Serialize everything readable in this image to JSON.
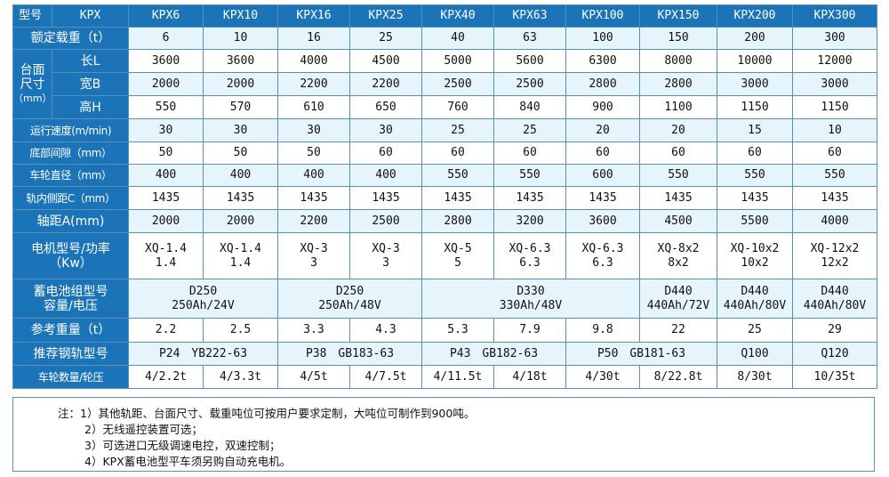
{
  "header": {
    "label": "型号",
    "series": "KPX",
    "models": [
      "KPX6",
      "KPX10",
      "KPX16",
      "KPX25",
      "KPX40",
      "KPX63",
      "KPX100",
      "KPX150",
      "KPX200",
      "KPX300"
    ]
  },
  "load": {
    "label": "额定载重（t）",
    "values": [
      "6",
      "10",
      "16",
      "25",
      "40",
      "63",
      "100",
      "150",
      "200",
      "300"
    ]
  },
  "table_size": {
    "label_line1": "台面",
    "label_line2": "尺寸",
    "label_line3": "（mm）",
    "length": {
      "label": "长L",
      "values": [
        "3600",
        "3600",
        "4000",
        "4500",
        "5000",
        "5600",
        "6300",
        "8000",
        "10000",
        "12000"
      ]
    },
    "width": {
      "label": "宽B",
      "values": [
        "2000",
        "2000",
        "2200",
        "2200",
        "2500",
        "2500",
        "2800",
        "2800",
        "3000",
        "3000"
      ]
    },
    "height": {
      "label": "高H",
      "values": [
        "550",
        "570",
        "610",
        "650",
        "760",
        "840",
        "900",
        "1100",
        "1150",
        "1150"
      ]
    }
  },
  "speed": {
    "label": "运行速度(m/min)",
    "values": [
      "30",
      "30",
      "30",
      "30",
      "25",
      "25",
      "20",
      "20",
      "15",
      "10"
    ]
  },
  "clearance": {
    "label": "底部间隙（mm）",
    "values": [
      "50",
      "50",
      "50",
      "60",
      "60",
      "60",
      "60",
      "60",
      "60",
      "60"
    ]
  },
  "wheel_dia": {
    "label": "车轮直径（mm）",
    "values": [
      "400",
      "400",
      "400",
      "400",
      "550",
      "550",
      "600",
      "550",
      "550",
      "550"
    ]
  },
  "gauge": {
    "label": "轨内侧距C（mm）",
    "values": [
      "1435",
      "1435",
      "1435",
      "1435",
      "1435",
      "1435",
      "1435",
      "1435",
      "1435",
      "1435"
    ]
  },
  "wheelbase": {
    "label": "轴距A(mm)",
    "values": [
      "2000",
      "2000",
      "2200",
      "2500",
      "2800",
      "3200",
      "3600",
      "4500",
      "5500",
      "4000"
    ]
  },
  "motor": {
    "label_line1": "电机型号/功率",
    "label_line2": "（Kw）",
    "models": [
      "XQ-1.4",
      "XQ-1.4",
      "XQ-3",
      "XQ-3",
      "XQ-5",
      "XQ-6.3",
      "XQ-6.3",
      "XQ-8x2",
      "XQ-10x2",
      "XQ-12x2"
    ],
    "powers": [
      "1.4",
      "1.4",
      "3",
      "3",
      "5",
      "6.3",
      "6.3",
      "8x2",
      "10x2",
      "12x2"
    ]
  },
  "battery": {
    "label_line1": "蓄电池组型号",
    "label_line2": "容量/电压",
    "groups": [
      {
        "model": "D250",
        "capacity": "250Ah/24V"
      },
      {
        "model": "D250",
        "capacity": "250Ah/48V"
      },
      {
        "model": "D330",
        "capacity": "330Ah/48V"
      },
      {
        "model": "D440",
        "capacity": "440Ah/72V"
      },
      {
        "model": "D440",
        "capacity": "440Ah/80V"
      },
      {
        "model": "D440",
        "capacity": "440Ah/80V"
      }
    ]
  },
  "weight": {
    "label": "参考重量（t）",
    "values": [
      "2.2",
      "2.5",
      "3.3",
      "4.3",
      "5.3",
      "7.9",
      "9.8",
      "22",
      "25",
      "29"
    ]
  },
  "rail": {
    "label": "推荐钢轨型号",
    "groups": [
      "P24　YB222-63",
      "P38　GB183-63",
      "P43　GB182-63",
      "P50　GB181-63",
      "Q100",
      "Q120"
    ]
  },
  "wheels": {
    "label": "车轮数量/轮压",
    "values": [
      "4/2.2t",
      "4/3.3t",
      "4/5t",
      "4/7.5t",
      "4/11.5t",
      "4/18t",
      "4/30t",
      "8/22.8t",
      "8/30t",
      "10/35t"
    ]
  },
  "notes": [
    "注：1）其他轨距、台面尺寸、载重吨位可按用户要求定制，大吨位可制作到900吨。",
    "2）无线遥控装置可选；",
    "3）可选进口无级调速电控，双速控制；",
    "4）KPX蓄电池型平车须另购自动充电机。"
  ]
}
